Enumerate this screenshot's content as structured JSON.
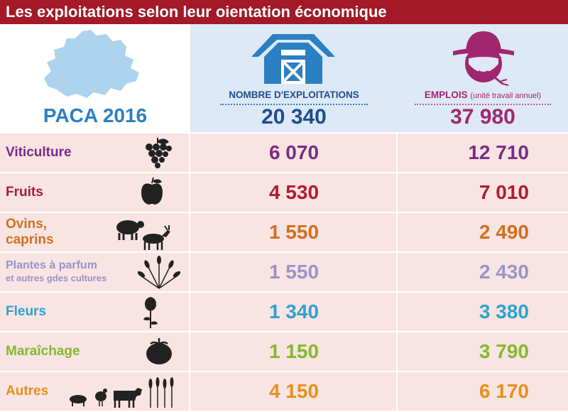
{
  "title": "Les exploitations selon leur oientation économique",
  "region_label": "PACA 2016",
  "columns": {
    "exploitations": {
      "label": "NOMBRE D'EXPLOITATIONS",
      "total": "20 340",
      "icon": "barn-icon"
    },
    "emplois": {
      "label": "EMPLOIS",
      "sublabel": "(unité travail annuel)",
      "total": "37 980",
      "icon": "farmer-icon"
    }
  },
  "colors": {
    "title_bar": "#a31927",
    "header_bg": "#dde9f6",
    "row_bg": "#f8e4e3",
    "paca_blue": "#2b7fc3",
    "exploitations_blue": "#1f4e8c",
    "emplois_magenta": "#a0276f"
  },
  "rows": [
    {
      "label": "Viticulture",
      "label_line2": "",
      "icon": "grapes-icon",
      "exploitations": "6 070",
      "emplois": "12 710",
      "color": "#7b2c82"
    },
    {
      "label": "Fruits",
      "label_line2": "",
      "icon": "apple-icon",
      "exploitations": "4 530",
      "emplois": "7 010",
      "color": "#b01c2e"
    },
    {
      "label": "Ovins,",
      "label_line2": "caprins",
      "icon": "sheep-goat-icon",
      "exploitations": "1 550",
      "emplois": "2 490",
      "color": "#d2701f"
    },
    {
      "label": "Plantes à parfum",
      "label_line2": "et autres gdes cultures",
      "icon": "wheat-icon",
      "exploitations": "1 550",
      "emplois": "2 430",
      "color": "#9a94c6"
    },
    {
      "label": "Fleurs",
      "label_line2": "",
      "icon": "rose-icon",
      "exploitations": "1 340",
      "emplois": "3 380",
      "color": "#2ea3cf"
    },
    {
      "label": "Maraîchage",
      "label_line2": "",
      "icon": "tomato-icon",
      "exploitations": "1 150",
      "emplois": "3 790",
      "color": "#86b82c"
    },
    {
      "label": "Autres",
      "label_line2": "",
      "icon": "livestock-icon",
      "exploitations": "4 150",
      "emplois": "6 170",
      "color": "#e8901c"
    }
  ],
  "chart_data": {
    "type": "table",
    "title": "Les exploitations selon leur oientation économique",
    "categories": [
      "Viticulture",
      "Fruits",
      "Ovins, caprins",
      "Plantes à parfum et autres gdes cultures",
      "Fleurs",
      "Maraîchage",
      "Autres"
    ],
    "series": [
      {
        "name": "NOMBRE D'EXPLOITATIONS",
        "values": [
          6070,
          4530,
          1550,
          1550,
          1340,
          1150,
          4150
        ],
        "total": 20340
      },
      {
        "name": "EMPLOIS (unité travail annuel)",
        "values": [
          12710,
          7010,
          2490,
          2430,
          3380,
          3790,
          6170
        ],
        "total": 37980
      }
    ]
  }
}
